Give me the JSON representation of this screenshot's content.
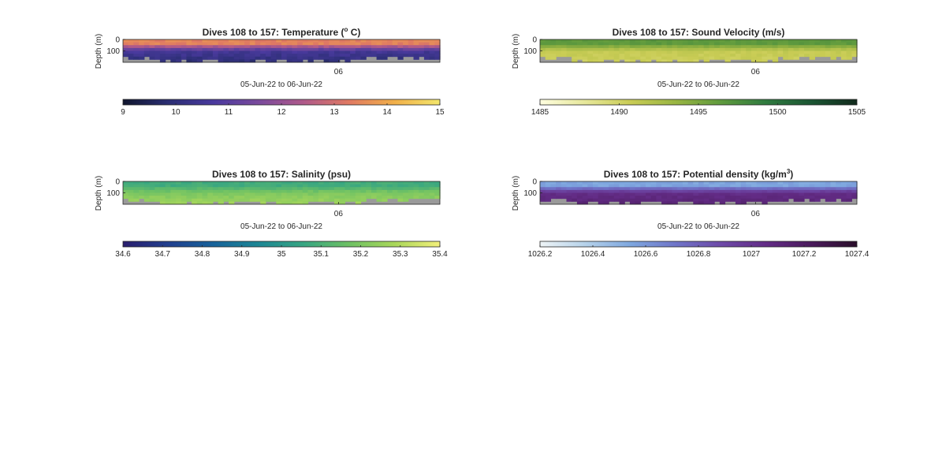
{
  "figure": {
    "background": "#ffffff",
    "mask_color": "#9a9a9a"
  },
  "chart_data": [
    {
      "type": "heatmap",
      "title_main": "Dives 108 to 157: Temperature (",
      "title_sup": "o",
      "title_end": " C)",
      "ylabel": "Depth (m)",
      "xlabel": "05-Jun-22 to 06-Jun-22",
      "x_tick_labels": [
        "06"
      ],
      "x_tick_positions": [
        0.68
      ],
      "y_tick_labels": [
        "0",
        "100"
      ],
      "y_tick_values": [
        0,
        100
      ],
      "ylim": [
        0,
        200
      ],
      "reversed_y": true,
      "colorbar": {
        "ticks": [
          "9",
          "10",
          "11",
          "12",
          "13",
          "14",
          "15"
        ],
        "range": [
          9,
          15
        ],
        "colors": [
          "#10162e",
          "#2b2e73",
          "#4a3a9e",
          "#7a4a9c",
          "#b05a8a",
          "#e07a62",
          "#f1b04a",
          "#f3e66b"
        ]
      },
      "profile": {
        "surface": 13.4,
        "mid": 10.6,
        "deep": 10.0,
        "noise": 0.45
      }
    },
    {
      "type": "heatmap",
      "title_main": "Dives 108 to 157: Sound Velocity (m/s)",
      "title_sup": "",
      "title_end": "",
      "ylabel": "Depth (m)",
      "xlabel": "05-Jun-22 to 06-Jun-22",
      "x_tick_labels": [
        "06"
      ],
      "x_tick_positions": [
        0.68
      ],
      "y_tick_labels": [
        "0",
        "100"
      ],
      "y_tick_values": [
        0,
        100
      ],
      "ylim": [
        0,
        200
      ],
      "reversed_y": true,
      "colorbar": {
        "ticks": [
          "1485",
          "1490",
          "1495",
          "1500",
          "1505"
        ],
        "range": [
          1485,
          1505
        ],
        "colors": [
          "#fefee0",
          "#e6e79a",
          "#c9cc55",
          "#98b542",
          "#5f9a3e",
          "#2f7a3f",
          "#1b5533",
          "#112a1c"
        ]
      },
      "profile": {
        "surface": 1496.5,
        "mid": 1491.0,
        "deep": 1490.5,
        "noise": 0.9
      }
    },
    {
      "type": "heatmap",
      "title_main": "Dives 108 to 157: Salinity (psu)",
      "title_sup": "",
      "title_end": "",
      "ylabel": "Depth (m)",
      "xlabel": "05-Jun-22 to 06-Jun-22",
      "x_tick_labels": [
        "06"
      ],
      "x_tick_positions": [
        0.68
      ],
      "y_tick_labels": [
        "0",
        "100"
      ],
      "y_tick_values": [
        0,
        100
      ],
      "ylim": [
        0,
        200
      ],
      "reversed_y": true,
      "colorbar": {
        "ticks": [
          "34.6",
          "34.7",
          "34.8",
          "34.9",
          "35",
          "35.1",
          "35.2",
          "35.3",
          "35.4"
        ],
        "range": [
          34.6,
          35.4
        ],
        "colors": [
          "#2a1e6e",
          "#213f8e",
          "#17639a",
          "#1d8794",
          "#38a682",
          "#6ec164",
          "#a9d75a",
          "#f3f07b"
        ]
      },
      "profile": {
        "surface": 35.08,
        "mid": 35.2,
        "deep": 35.26,
        "noise": 0.04
      }
    },
    {
      "type": "heatmap",
      "title_main": "Dives 108 to 157: Potential density (kg/m",
      "title_sup": "3",
      "title_end": ")",
      "ylabel": "Depth (m)",
      "xlabel": "05-Jun-22 to 06-Jun-22",
      "x_tick_labels": [
        "06"
      ],
      "x_tick_positions": [
        0.68
      ],
      "y_tick_labels": [
        "0",
        "100"
      ],
      "y_tick_values": [
        0,
        100
      ],
      "ylim": [
        0,
        200
      ],
      "reversed_y": true,
      "colorbar": {
        "ticks": [
          "1026.2",
          "1026.4",
          "1026.6",
          "1026.8",
          "1027",
          "1027.2",
          "1027.4"
        ],
        "range": [
          1026.2,
          1027.4
        ],
        "colors": [
          "#eef4f6",
          "#b6d2ea",
          "#7ea7df",
          "#6f74c8",
          "#6e4aa8",
          "#632c86",
          "#4a1a5c",
          "#2a0e2a"
        ]
      },
      "profile": {
        "surface": 1026.55,
        "mid": 1027.05,
        "deep": 1027.12,
        "noise": 0.06
      }
    }
  ]
}
